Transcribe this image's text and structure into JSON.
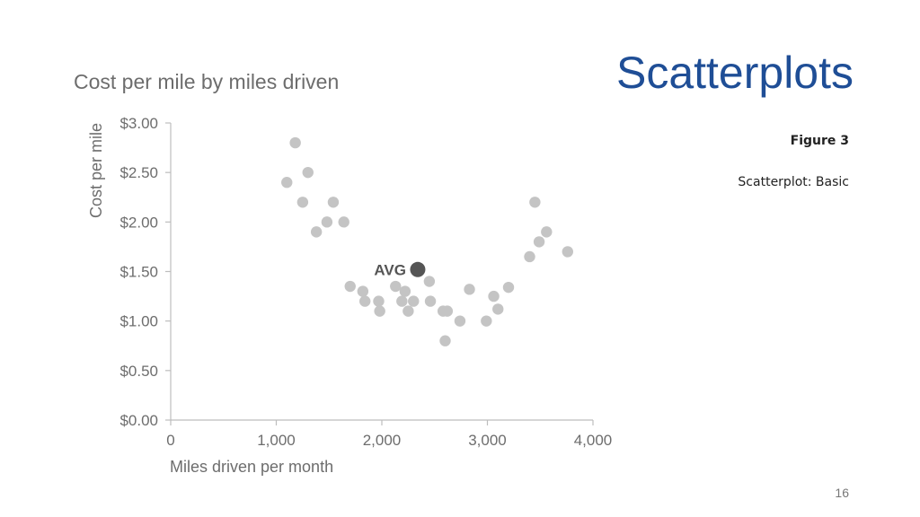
{
  "slide": {
    "title": "Scatterplots",
    "figure_label": "Figure 3",
    "figure_caption": "Scatterplot: Basic",
    "page_number": "16"
  },
  "colors": {
    "slide_title": "#1f4e96",
    "points": "#c4c4c4",
    "avg_point": "#555555",
    "axis": "#bdbdbd",
    "text": "#6d6d6d"
  },
  "chart_data": {
    "type": "scatter",
    "title": "Cost per mile by miles driven",
    "xlabel": "Miles driven per month",
    "ylabel": "Cost per mile",
    "xlim": [
      0,
      4000
    ],
    "ylim": [
      0,
      3
    ],
    "x_ticks": [
      0,
      1000,
      2000,
      3000,
      4000
    ],
    "x_tick_labels": [
      "0",
      "1,000",
      "2,000",
      "3,000",
      "4,000"
    ],
    "y_ticks": [
      0,
      0.5,
      1,
      1.5,
      2,
      2.5,
      3
    ],
    "y_tick_labels": [
      "$0.00",
      "$0.50",
      "$1.00",
      "$1.50",
      "$2.00",
      "$2.50",
      "$3.00"
    ],
    "grid": false,
    "points": [
      {
        "x": 1180,
        "y": 2.8
      },
      {
        "x": 1300,
        "y": 2.5
      },
      {
        "x": 1100,
        "y": 2.4
      },
      {
        "x": 1250,
        "y": 2.2
      },
      {
        "x": 1540,
        "y": 2.2
      },
      {
        "x": 1480,
        "y": 2.0
      },
      {
        "x": 1640,
        "y": 2.0
      },
      {
        "x": 1380,
        "y": 1.9
      },
      {
        "x": 1700,
        "y": 1.35
      },
      {
        "x": 1820,
        "y": 1.3
      },
      {
        "x": 1840,
        "y": 1.2
      },
      {
        "x": 1970,
        "y": 1.2
      },
      {
        "x": 1980,
        "y": 1.1
      },
      {
        "x": 2130,
        "y": 1.35
      },
      {
        "x": 2190,
        "y": 1.2
      },
      {
        "x": 2220,
        "y": 1.3
      },
      {
        "x": 2250,
        "y": 1.1
      },
      {
        "x": 2300,
        "y": 1.2
      },
      {
        "x": 2450,
        "y": 1.4
      },
      {
        "x": 2460,
        "y": 1.2
      },
      {
        "x": 2580,
        "y": 1.1
      },
      {
        "x": 2620,
        "y": 1.1
      },
      {
        "x": 2600,
        "y": 0.8
      },
      {
        "x": 2740,
        "y": 1.0
      },
      {
        "x": 2830,
        "y": 1.32
      },
      {
        "x": 2990,
        "y": 1.0
      },
      {
        "x": 3060,
        "y": 1.25
      },
      {
        "x": 3100,
        "y": 1.12
      },
      {
        "x": 3200,
        "y": 1.34
      },
      {
        "x": 3400,
        "y": 1.65
      },
      {
        "x": 3490,
        "y": 1.8
      },
      {
        "x": 3450,
        "y": 2.2
      },
      {
        "x": 3560,
        "y": 1.9
      },
      {
        "x": 3760,
        "y": 1.7
      }
    ],
    "annotations": [
      {
        "label": "AVG",
        "x": 2340,
        "y": 1.52
      }
    ]
  }
}
